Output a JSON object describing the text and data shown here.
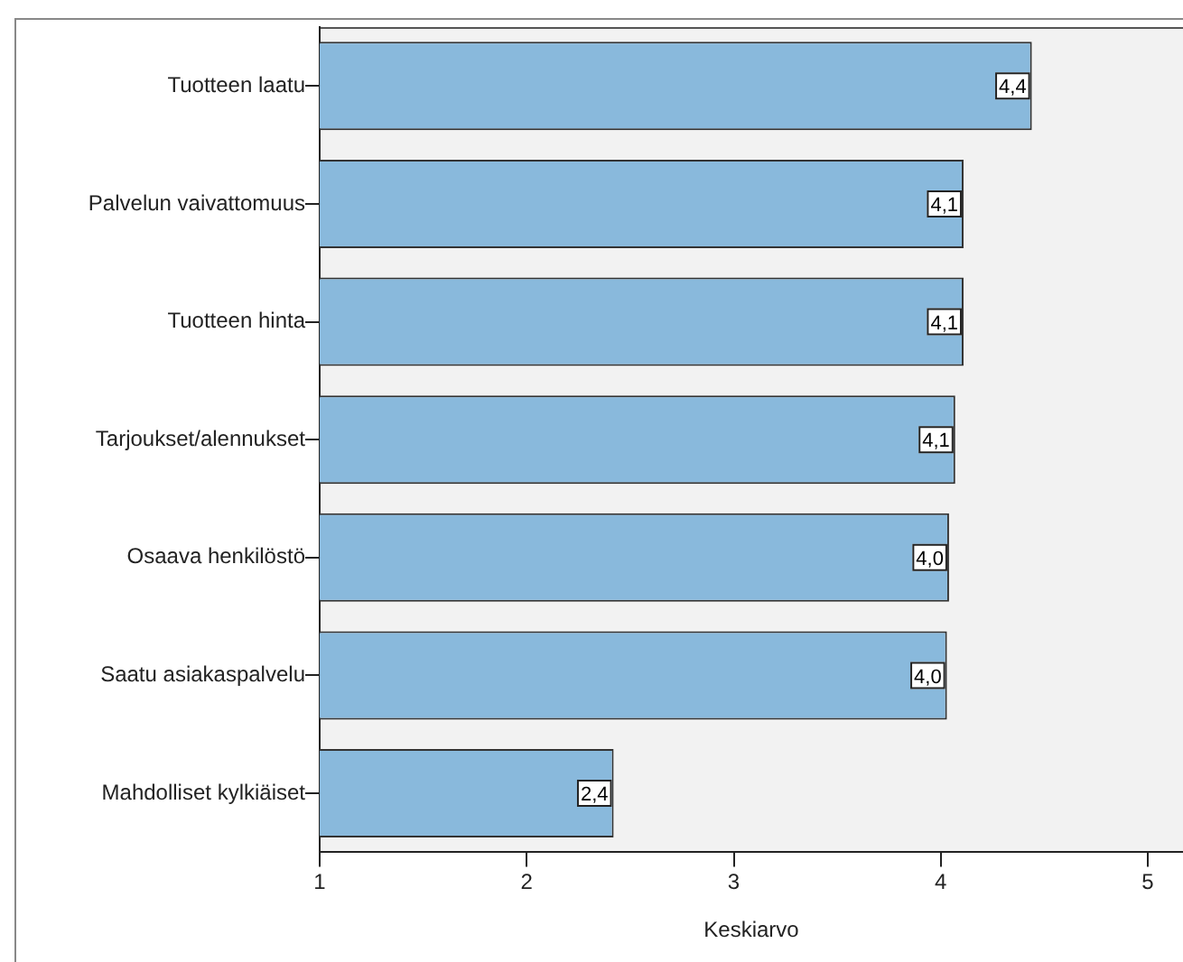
{
  "chart_data": {
    "type": "bar",
    "orientation": "horizontal",
    "xlabel": "Keskiarvo",
    "categories": [
      "Tuotteen laatu",
      "Palvelun vaivattomuus",
      "Tuotteen hinta",
      "Tarjoukset/alennukset",
      "Osaava henkilöstö",
      "Saatu asiakaspalvelu",
      "Mahdolliset kylkiäiset"
    ],
    "values": [
      4.44,
      4.11,
      4.11,
      4.07,
      4.04,
      4.03,
      2.42
    ],
    "value_labels": [
      "4,4",
      "4,1",
      "4,1",
      "4,1",
      "4,0",
      "4,0",
      "2,4"
    ],
    "color": "#89b9dc",
    "xlim": [
      1,
      5.17
    ],
    "xticks": [
      1,
      2,
      3,
      4,
      5
    ],
    "grid": false,
    "legend": false
  }
}
